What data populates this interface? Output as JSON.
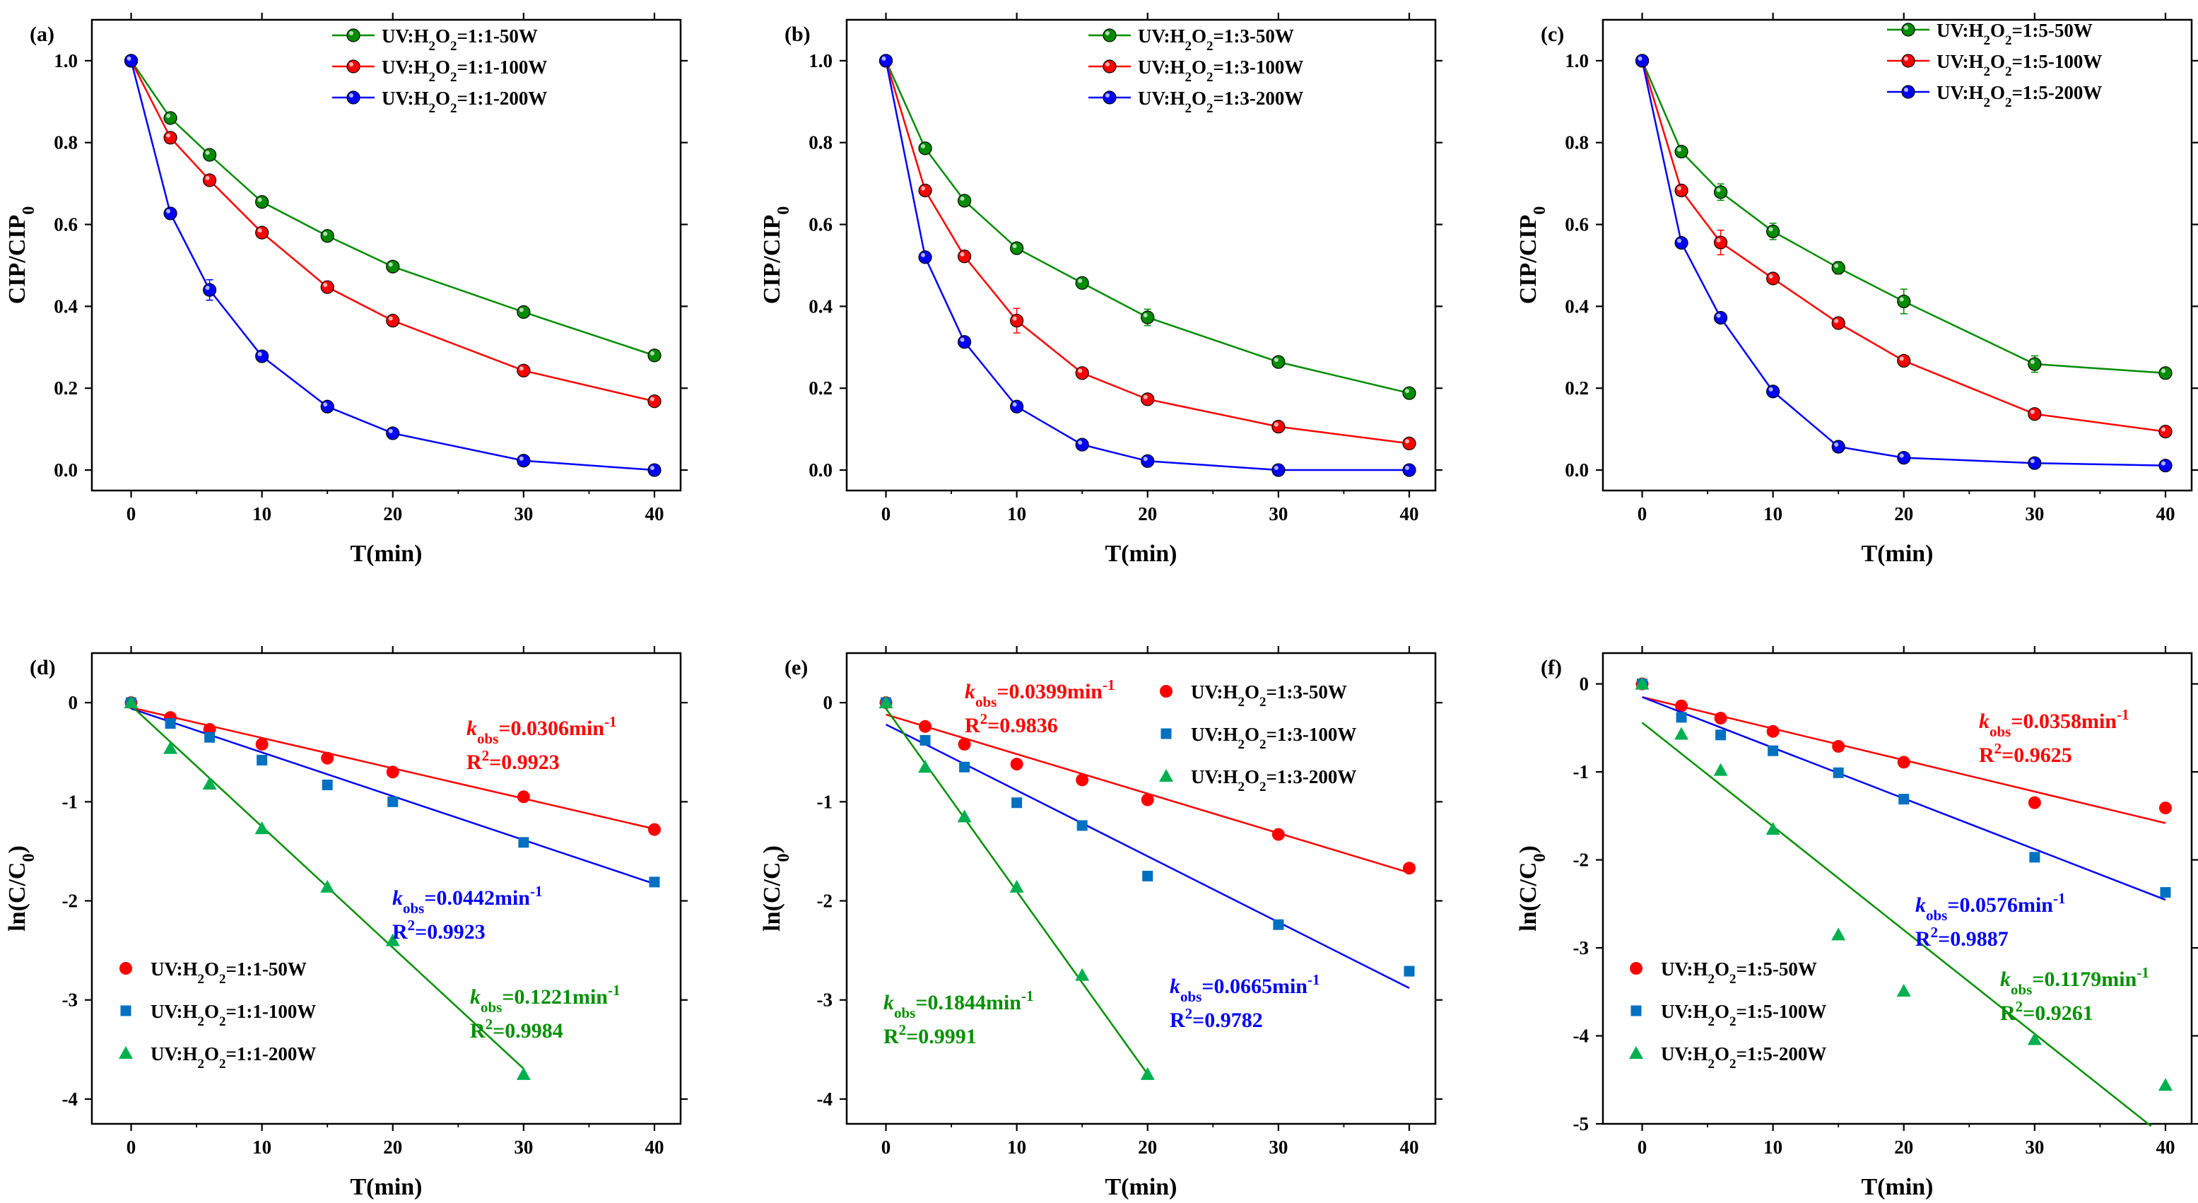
{
  "chart_data": [
    {
      "type": "line",
      "panel_label": "(a)",
      "xlabel": "T(min)",
      "ylabel": "CIP/CIP",
      "ylabel_sub": "0",
      "xlim": [
        -3,
        42
      ],
      "ylim": [
        -0.05,
        1.1
      ],
      "xticks": [
        "0",
        "10",
        "20",
        "30",
        "40"
      ],
      "yticks": [
        "0.0",
        "0.2",
        "0.4",
        "0.6",
        "0.8",
        "1.0"
      ],
      "legend_position": "top-right",
      "x": [
        0,
        3,
        6,
        10,
        15,
        20,
        30,
        40
      ],
      "series": [
        {
          "name": "UV:H2O2=1:1-50W",
          "legend_prefix": "UV:H",
          "legend_sub1": "2",
          "legend_mid": "O",
          "legend_sub2": "2",
          "legend_suffix": "=1:1-50W",
          "color": "#008C00",
          "values": [
            1.0,
            0.86,
            0.77,
            0.655,
            0.572,
            0.497,
            0.386,
            0.28
          ],
          "errors": [
            0,
            0.01,
            0.01,
            0.01,
            0.01,
            0.01,
            0.01,
            0.01
          ]
        },
        {
          "name": "UV:H2O2=1:1-100W",
          "legend_prefix": "UV:H",
          "legend_sub1": "2",
          "legend_mid": "O",
          "legend_sub2": "2",
          "legend_suffix": "=1:1-100W",
          "color": "#FF0000",
          "values": [
            1.0,
            0.812,
            0.708,
            0.58,
            0.447,
            0.365,
            0.243,
            0.168
          ],
          "errors": [
            0,
            0.01,
            0.01,
            0.01,
            0.01,
            0.01,
            0.01,
            0.01
          ]
        },
        {
          "name": "UV:H2O2=1:1-200W",
          "legend_prefix": "UV:H",
          "legend_sub1": "2",
          "legend_mid": "O",
          "legend_sub2": "2",
          "legend_suffix": "=1:1-200W",
          "color": "#0000FF",
          "values": [
            1.0,
            0.627,
            0.44,
            0.278,
            0.155,
            0.09,
            0.023,
            0.0
          ],
          "errors": [
            0,
            0.01,
            0.025,
            0.01,
            0.01,
            0.01,
            0.01,
            0.005
          ]
        }
      ]
    },
    {
      "type": "line",
      "panel_label": "(b)",
      "xlabel": "T(min)",
      "ylabel": "CIP/CIP",
      "ylabel_sub": "0",
      "xlim": [
        -3,
        42
      ],
      "ylim": [
        -0.05,
        1.1
      ],
      "xticks": [
        "0",
        "10",
        "20",
        "30",
        "40"
      ],
      "yticks": [
        "0.0",
        "0.2",
        "0.4",
        "0.6",
        "0.8",
        "1.0"
      ],
      "legend_position": "top-right",
      "x": [
        0,
        3,
        6,
        10,
        15,
        20,
        30,
        40
      ],
      "series": [
        {
          "name": "UV:H2O2=1:3-50W",
          "legend_prefix": "UV:H",
          "legend_sub1": "2",
          "legend_mid": "O",
          "legend_sub2": "2",
          "legend_suffix": "=1:3-50W",
          "color": "#008C00",
          "values": [
            1.0,
            0.786,
            0.658,
            0.542,
            0.457,
            0.373,
            0.264,
            0.188
          ],
          "errors": [
            0,
            0.01,
            0.01,
            0.01,
            0.01,
            0.02,
            0.01,
            0.01
          ]
        },
        {
          "name": "UV:H2O2=1:3-100W",
          "legend_prefix": "UV:H",
          "legend_sub1": "2",
          "legend_mid": "O",
          "legend_sub2": "2",
          "legend_suffix": "=1:3-100W",
          "color": "#FF0000",
          "values": [
            1.0,
            0.683,
            0.522,
            0.365,
            0.237,
            0.173,
            0.106,
            0.065
          ],
          "errors": [
            0,
            0.01,
            0.01,
            0.03,
            0.01,
            0.01,
            0.01,
            0.01
          ]
        },
        {
          "name": "UV:H2O2=1:3-200W",
          "legend_prefix": "UV:H",
          "legend_sub1": "2",
          "legend_mid": "O",
          "legend_sub2": "2",
          "legend_suffix": "=1:3-200W",
          "color": "#0000FF",
          "values": [
            1.0,
            0.52,
            0.313,
            0.155,
            0.062,
            0.022,
            0.0,
            0.0
          ],
          "errors": [
            0,
            0.01,
            0.01,
            0.01,
            0.01,
            0.01,
            0.005,
            0.005
          ]
        }
      ]
    },
    {
      "type": "line",
      "panel_label": "(c)",
      "xlabel": "T(min)",
      "ylabel": "CIP/CIP",
      "ylabel_sub": "0",
      "xlim": [
        -3,
        42
      ],
      "ylim": [
        -0.05,
        1.1
      ],
      "xticks": [
        "0",
        "10",
        "20",
        "30",
        "40"
      ],
      "yticks": [
        "0.0",
        "0.2",
        "0.4",
        "0.6",
        "0.8",
        "1.0"
      ],
      "legend_position": "top-right",
      "x": [
        0,
        3,
        6,
        10,
        15,
        20,
        30,
        40
      ],
      "series": [
        {
          "name": "UV:H2O2=1:5-50W",
          "legend_prefix": "UV:H",
          "legend_sub1": "2",
          "legend_mid": "O",
          "legend_sub2": "2",
          "legend_suffix": "=1:5-50W",
          "color": "#008C00",
          "values": [
            1.0,
            0.778,
            0.679,
            0.583,
            0.494,
            0.412,
            0.259,
            0.237
          ],
          "errors": [
            0,
            0.01,
            0.02,
            0.02,
            0.015,
            0.03,
            0.02,
            0.01
          ]
        },
        {
          "name": "UV:H2O2=1:5-100W",
          "legend_prefix": "UV:H",
          "legend_sub1": "2",
          "legend_mid": "O",
          "legend_sub2": "2",
          "legend_suffix": "=1:5-100W",
          "color": "#FF0000",
          "values": [
            1.0,
            0.683,
            0.556,
            0.468,
            0.359,
            0.267,
            0.137,
            0.094
          ],
          "errors": [
            0,
            0.01,
            0.03,
            0.01,
            0.01,
            0.01,
            0.01,
            0.01
          ]
        },
        {
          "name": "UV:H2O2=1:5-200W",
          "legend_prefix": "UV:H",
          "legend_sub1": "2",
          "legend_mid": "O",
          "legend_sub2": "2",
          "legend_suffix": "=1:5-200W",
          "color": "#0000FF",
          "values": [
            1.0,
            0.555,
            0.372,
            0.192,
            0.057,
            0.03,
            0.017,
            0.011
          ],
          "errors": [
            0,
            0.01,
            0.01,
            0.01,
            0.01,
            0.01,
            0.005,
            0.005
          ]
        }
      ]
    },
    {
      "type": "scatter",
      "panel_label": "(d)",
      "xlabel": "T(min)",
      "ylabel_prefix": "ln(C/C",
      "ylabel_sub": "0",
      "ylabel_suffix": ")",
      "xlim": [
        -3,
        42
      ],
      "ylim": [
        -4.25,
        0.5
      ],
      "xticks": [
        "0",
        "10",
        "20",
        "30",
        "40"
      ],
      "yticks": [
        "-4",
        "-3",
        "-2",
        "-1",
        "0"
      ],
      "legend_position": "bottom-left",
      "series": [
        {
          "name": "UV:H2O2=1:1-50W",
          "legend_prefix": "UV:H",
          "legend_sub1": "2",
          "legend_mid": "O",
          "legend_sub2": "2",
          "legend_suffix": "=1:1-50W",
          "color": "#FF0000",
          "marker": "circle",
          "x": [
            0,
            3,
            6,
            10,
            15,
            20,
            30,
            40
          ],
          "values": [
            0,
            -0.15,
            -0.27,
            -0.42,
            -0.56,
            -0.7,
            -0.95,
            -1.28
          ],
          "fit": {
            "slope": -0.0306,
            "intercept": -0.05,
            "x_range": [
              0,
              40
            ]
          },
          "k_value": "=0.0306min",
          "k_exp": "-1",
          "r2_value": "=0.9923"
        },
        {
          "name": "UV:H2O2=1:1-100W",
          "legend_prefix": "UV:H",
          "legend_sub1": "2",
          "legend_mid": "O",
          "legend_sub2": "2",
          "legend_suffix": "=1:1-100W",
          "color": "#0070C0",
          "fit_color": "#0000FF",
          "label_color": "#0000FF",
          "marker": "square",
          "x": [
            0,
            3,
            6,
            10,
            15,
            20,
            30,
            40
          ],
          "values": [
            0,
            -0.21,
            -0.35,
            -0.58,
            -0.83,
            -1.0,
            -1.41,
            -1.81
          ],
          "fit": {
            "slope": -0.0442,
            "intercept": -0.06,
            "x_range": [
              0,
              40
            ]
          },
          "k_value": "=0.0442min",
          "k_exp": "-1",
          "r2_value": "=0.9923"
        },
        {
          "name": "UV:H2O2=1:1-200W",
          "legend_prefix": "UV:H",
          "legend_sub1": "2",
          "legend_mid": "O",
          "legend_sub2": "2",
          "legend_suffix": "=1:1-200W",
          "color": "#00B050",
          "fit_color": "#009000",
          "label_color": "#009000",
          "marker": "triangle",
          "x": [
            0,
            3,
            6,
            10,
            15,
            20,
            30
          ],
          "values": [
            0,
            -0.46,
            -0.82,
            -1.27,
            -1.86,
            -2.4,
            -3.75
          ],
          "fit": {
            "slope": -0.1221,
            "intercept": -0.03,
            "x_range": [
              0,
              30
            ]
          },
          "k_value": "=0.1221min",
          "k_exp": "-1",
          "r2_value": "=0.9984"
        }
      ]
    },
    {
      "type": "scatter",
      "panel_label": "(e)",
      "xlabel": "T(min)",
      "ylabel_prefix": "ln(C/C",
      "ylabel_sub": "0",
      "ylabel_suffix": ")",
      "xlim": [
        -3,
        42
      ],
      "ylim": [
        -4.25,
        0.5
      ],
      "xticks": [
        "0",
        "10",
        "20",
        "30",
        "40"
      ],
      "yticks": [
        "-4",
        "-3",
        "-2",
        "-1",
        "0"
      ],
      "legend_position": "top-right",
      "series": [
        {
          "name": "UV:H2O2=1:3-50W",
          "legend_prefix": "UV:H",
          "legend_sub1": "2",
          "legend_mid": "O",
          "legend_sub2": "2",
          "legend_suffix": "=1:3-50W",
          "color": "#FF0000",
          "marker": "circle",
          "x": [
            0,
            3,
            6,
            10,
            15,
            20,
            30,
            40
          ],
          "values": [
            0,
            -0.24,
            -0.42,
            -0.62,
            -0.78,
            -0.98,
            -1.33,
            -1.67
          ],
          "fit": {
            "slope": -0.0399,
            "intercept": -0.12,
            "x_range": [
              0,
              40
            ]
          },
          "k_value": "=0.0399min",
          "k_exp": "-1",
          "r2_value": "=0.9836"
        },
        {
          "name": "UV:H2O2=1:3-100W",
          "legend_prefix": "UV:H",
          "legend_sub1": "2",
          "legend_mid": "O",
          "legend_sub2": "2",
          "legend_suffix": "=1:3-100W",
          "color": "#0070C0",
          "fit_color": "#0000FF",
          "label_color": "#0000FF",
          "marker": "square",
          "x": [
            0,
            3,
            6,
            10,
            15,
            20,
            30,
            40
          ],
          "values": [
            0,
            -0.38,
            -0.65,
            -1.01,
            -1.24,
            -1.75,
            -2.24,
            -2.71
          ],
          "fit": {
            "slope": -0.0665,
            "intercept": -0.22,
            "x_range": [
              0,
              40
            ]
          },
          "k_value": "=0.0665min",
          "k_exp": "-1",
          "r2_value": "=0.9782"
        },
        {
          "name": "UV:H2O2=1:3-200W",
          "legend_prefix": "UV:H",
          "legend_sub1": "2",
          "legend_mid": "O",
          "legend_sub2": "2",
          "legend_suffix": "=1:3-200W",
          "color": "#00B050",
          "fit_color": "#009000",
          "label_color": "#009000",
          "marker": "triangle",
          "x": [
            0,
            3,
            6,
            10,
            15,
            20
          ],
          "values": [
            0,
            -0.65,
            -1.15,
            -1.86,
            -2.75,
            -3.75
          ],
          "fit": {
            "slope": -0.1844,
            "intercept": -0.06,
            "x_range": [
              0,
              20
            ]
          },
          "k_value": "=0.1844min",
          "k_exp": "-1",
          "r2_value": "=0.9991"
        }
      ]
    },
    {
      "type": "scatter",
      "panel_label": "(f)",
      "xlabel": "T(min)",
      "ylabel_prefix": "ln(C/C",
      "ylabel_sub": "0",
      "ylabel_suffix": ")",
      "xlim": [
        -3,
        42
      ],
      "ylim": [
        -5.0,
        0.35
      ],
      "xticks": [
        "0",
        "10",
        "20",
        "30",
        "40"
      ],
      "yticks": [
        "-5",
        "-4",
        "-3",
        "-2",
        "-1",
        "0"
      ],
      "legend_position": "bottom-left",
      "series": [
        {
          "name": "UV:H2O2=1:5-50W",
          "legend_prefix": "UV:H",
          "legend_sub1": "2",
          "legend_mid": "O",
          "legend_sub2": "2",
          "legend_suffix": "=1:5-50W",
          "color": "#FF0000",
          "marker": "circle",
          "x": [
            0,
            3,
            6,
            10,
            15,
            20,
            30,
            40
          ],
          "values": [
            0,
            -0.25,
            -0.39,
            -0.54,
            -0.71,
            -0.89,
            -1.35,
            -1.41
          ],
          "fit": {
            "slope": -0.0358,
            "intercept": -0.15,
            "x_range": [
              0,
              40
            ]
          },
          "k_value": "=0.0358min",
          "k_exp": "-1",
          "r2_value": "=0.9625"
        },
        {
          "name": "UV:H2O2=1:5-100W",
          "legend_prefix": "UV:H",
          "legend_sub1": "2",
          "legend_mid": "O",
          "legend_sub2": "2",
          "legend_suffix": "=1:5-100W",
          "color": "#0070C0",
          "fit_color": "#0000FF",
          "label_color": "#0000FF",
          "marker": "square",
          "x": [
            0,
            3,
            6,
            10,
            15,
            20,
            30,
            40
          ],
          "values": [
            0,
            -0.38,
            -0.58,
            -0.76,
            -1.01,
            -1.31,
            -1.97,
            -2.37
          ],
          "fit": {
            "slope": -0.0576,
            "intercept": -0.15,
            "x_range": [
              0,
              40
            ]
          },
          "k_value": "=0.0576min",
          "k_exp": "-1",
          "r2_value": "=0.9887"
        },
        {
          "name": "UV:H2O2=1:5-200W",
          "legend_prefix": "UV:H",
          "legend_sub1": "2",
          "legend_mid": "O",
          "legend_sub2": "2",
          "legend_suffix": "=1:5-200W",
          "color": "#00B050",
          "fit_color": "#009000",
          "label_color": "#009000",
          "marker": "triangle",
          "x": [
            0,
            3,
            6,
            10,
            15,
            20,
            30,
            40
          ],
          "values": [
            0,
            -0.57,
            -0.98,
            -1.65,
            -2.85,
            -3.49,
            -4.04,
            -4.56
          ],
          "fit": {
            "slope": -0.1179,
            "intercept": -0.44,
            "x_range": [
              0,
              38.9
            ]
          },
          "k_value": "=0.1179min",
          "k_exp": "-1",
          "r2_value": "=0.9261"
        }
      ]
    }
  ],
  "k_symbol": "k",
  "k_sub": "obs",
  "r2_prefix": "R",
  "r2_sup": "2"
}
